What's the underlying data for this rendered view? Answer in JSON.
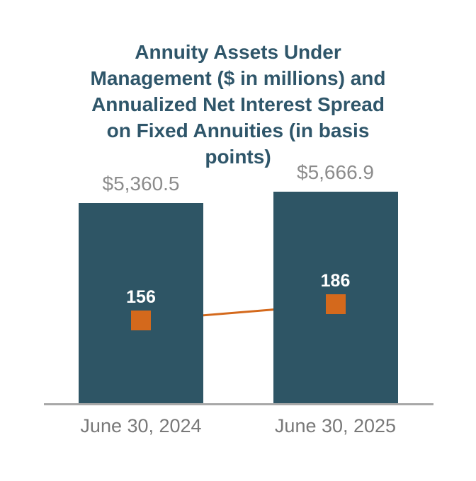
{
  "title_lines": [
    "Annuity Assets Under",
    "Management ($ in millions) and",
    "Annualized Net Interest Spread",
    "on Fixed Annuities (in basis",
    "points)"
  ],
  "chart_data": {
    "type": "bar",
    "subtype": "bar-line-combo",
    "title": "Annuity Assets Under Management ($ in millions) and Annualized Net Interest Spread on Fixed Annuities (in basis points)",
    "categories": [
      "June 30, 2024",
      "June 30, 2025"
    ],
    "series": [
      {
        "name": "Annuity Assets Under Management ($ in millions)",
        "type": "bar",
        "values": [
          5360.5,
          5666.9
        ],
        "labels": [
          "$5,360.5",
          "$5,666.9"
        ]
      },
      {
        "name": "Annualized Net Interest Spread on Fixed Annuities (in basis points)",
        "type": "line",
        "marker": "square",
        "values": [
          156,
          186
        ],
        "labels": [
          "156",
          "186"
        ]
      }
    ],
    "xlabel": "",
    "ylabel": "",
    "grid": false,
    "legend": false,
    "baseline": 0
  },
  "colors": {
    "title": "#2F566A",
    "bar": "#2E5565",
    "accent": "#D4691C",
    "value_label": "#8C8C8C",
    "category_label": "#787878",
    "axis": "#A8A8A8",
    "marker_label": "#FFFFFF"
  }
}
